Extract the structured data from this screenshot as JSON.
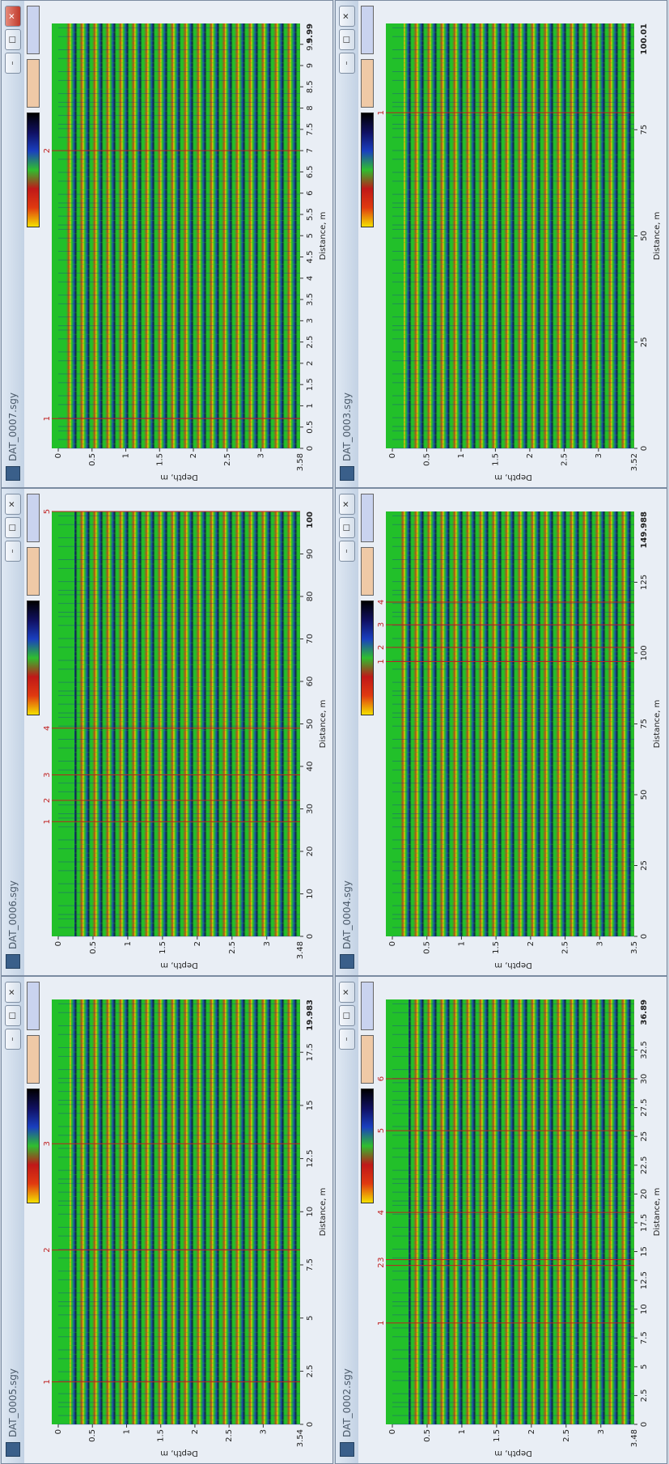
{
  "windows": [
    {
      "title": "DAT_0007.sgy",
      "distance_label": "Distance, m",
      "depth_label": "Depth, m",
      "distance_ticks": [
        0,
        0.5,
        1,
        1.5,
        2,
        2.5,
        3,
        3.5,
        4,
        4.5,
        5,
        5.5,
        6,
        6.5,
        7,
        7.5,
        8,
        8.5,
        9,
        9.5
      ],
      "distance_end": 9.99,
      "depth_ticks": [
        0,
        0.5,
        1,
        1.5,
        2,
        2.5,
        3
      ],
      "depth_end": 3.58,
      "markers": [
        {
          "label": "1",
          "distance": 0.7
        },
        {
          "label": "2",
          "distance": 7
        }
      ]
    },
    {
      "title": "DAT_0003.sgy",
      "distance_label": "Distance, m",
      "depth_label": "Depth, m",
      "distance_ticks": [
        0,
        25,
        50,
        75
      ],
      "distance_end": 100.01,
      "depth_ticks": [
        0,
        0.5,
        1,
        1.5,
        2,
        2.5,
        3
      ],
      "depth_end": 3.52,
      "markers": [
        {
          "label": "1",
          "distance": 79
        }
      ]
    },
    {
      "title": "DAT_0006.sgy",
      "distance_label": "Distance, m",
      "depth_label": "Depth, m",
      "distance_ticks": [
        0,
        10,
        20,
        30,
        40,
        50,
        60,
        70,
        80,
        90
      ],
      "distance_end": 100,
      "depth_ticks": [
        0,
        0.5,
        1,
        1.5,
        2,
        2.5,
        3
      ],
      "depth_end": 3.48,
      "markers": [
        {
          "label": "1",
          "distance": 27
        },
        {
          "label": "2",
          "distance": 32
        },
        {
          "label": "3",
          "distance": 38
        },
        {
          "label": "4",
          "distance": 49
        },
        {
          "label": "5",
          "distance": 100
        }
      ]
    },
    {
      "title": "DAT_0004.sgy",
      "distance_label": "Distance, m",
      "depth_label": "Depth, m",
      "distance_ticks": [
        0,
        25,
        50,
        75,
        100,
        125
      ],
      "distance_end": 149.988,
      "depth_ticks": [
        0,
        0.5,
        1,
        1.5,
        2,
        2.5,
        3
      ],
      "depth_end": 3.5,
      "markers": [
        {
          "label": "1",
          "distance": 97
        },
        {
          "label": "2",
          "distance": 102
        },
        {
          "label": "3",
          "distance": 110
        },
        {
          "label": "4",
          "distance": 118
        }
      ]
    },
    {
      "title": "DAT_0005.sgy",
      "distance_label": "Distance, m",
      "depth_label": "Depth, m",
      "distance_ticks": [
        0,
        2.5,
        5,
        7.5,
        10,
        12.5,
        15,
        17.5
      ],
      "distance_end": 19.983,
      "depth_ticks": [
        0,
        0.5,
        1,
        1.5,
        2,
        2.5,
        3
      ],
      "depth_end": 3.54,
      "markers": [
        {
          "label": "1",
          "distance": 2
        },
        {
          "label": "2",
          "distance": 8.2
        },
        {
          "label": "3",
          "distance": 13.2
        }
      ]
    },
    {
      "title": "DAT_0002.sgy",
      "distance_label": "Distance, m",
      "depth_label": "Depth, m",
      "distance_ticks": [
        0,
        2.5,
        5,
        7.5,
        10,
        12.5,
        15,
        17.5,
        20,
        22.5,
        25,
        27.5,
        30,
        32.5
      ],
      "distance_end": 36.89,
      "depth_ticks": [
        0,
        0.5,
        1,
        1.5,
        2,
        2.5,
        3
      ],
      "depth_end": 3.48,
      "markers": [
        {
          "label": "1",
          "distance": 8.8
        },
        {
          "label": "2",
          "distance": 13.8
        },
        {
          "label": "3",
          "distance": 14.3
        },
        {
          "label": "4",
          "distance": 18.4
        },
        {
          "label": "5",
          "distance": 25.5
        },
        {
          "label": "6",
          "distance": 30
        }
      ]
    }
  ]
}
